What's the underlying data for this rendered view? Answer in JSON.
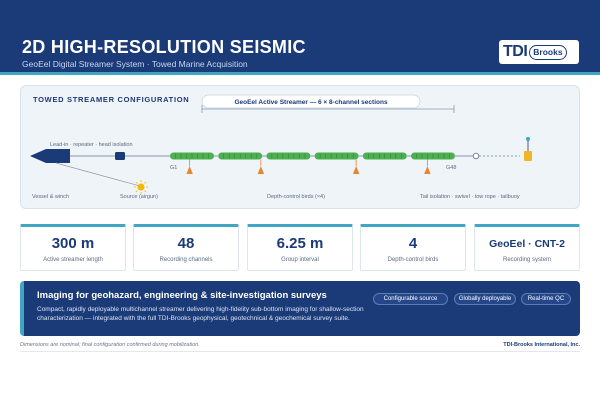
{
  "header": {
    "title": "2D HIGH-RESOLUTION SEISMIC",
    "subtitle": "GeoEel Digital Streamer System  ·  Towed Marine Acquisition",
    "logo_tdi": "TDI",
    "logo_brooks": "Brooks"
  },
  "config": {
    "title": "TOWED STREAMER CONFIGURATION",
    "banner": "GeoEel Active Streamer  —  6 × 8-channel sections",
    "lead_in_label": "Lead-in · repeater · head isolation",
    "g1_label": "G1",
    "g48_label": "G48",
    "vessel_label": "Vessel & winch",
    "source_label": "Source (airgun)",
    "birds_label": "Depth-control birds (×4)",
    "tail_label": "Tail isolation · swivel · tow rope · tailbuoy"
  },
  "stats": [
    {
      "value": "300 m",
      "label": "Active streamer length"
    },
    {
      "value": "48",
      "label": "Recording channels"
    },
    {
      "value": "6.25 m",
      "label": "Group interval"
    },
    {
      "value": "4",
      "label": "Depth-control birds"
    },
    {
      "value": "GeoEel · CNT-2",
      "label": "Recording system"
    }
  ],
  "imaging": {
    "title": "Imaging for geohazard, engineering & site-investigation surveys",
    "description": "Compact, rapidly deployable multichannel streamer delivering high-fidelity sub-bottom imaging for shallow-section characterization — integrated with the full TDI-Brooks geophysical, geotechnical & geochemical survey suite.",
    "badges": [
      "Configurable source",
      "Globally deployable",
      "Real-time QC"
    ]
  },
  "footer": {
    "note": "Dimensions are nominal; final configuration confirmed during mobilization.",
    "brand": "TDI-Brooks International, Inc."
  },
  "colors": {
    "navy": "#1b3a78",
    "teal": "#3fa6c4",
    "section_green": "#4caf50",
    "bird_orange": "#e8862c",
    "buoy_yellow": "#f0b429",
    "source_yellow": "#f5b800"
  },
  "diagram": {
    "sections": 6,
    "channels_per_section": 8,
    "birds": 4
  }
}
